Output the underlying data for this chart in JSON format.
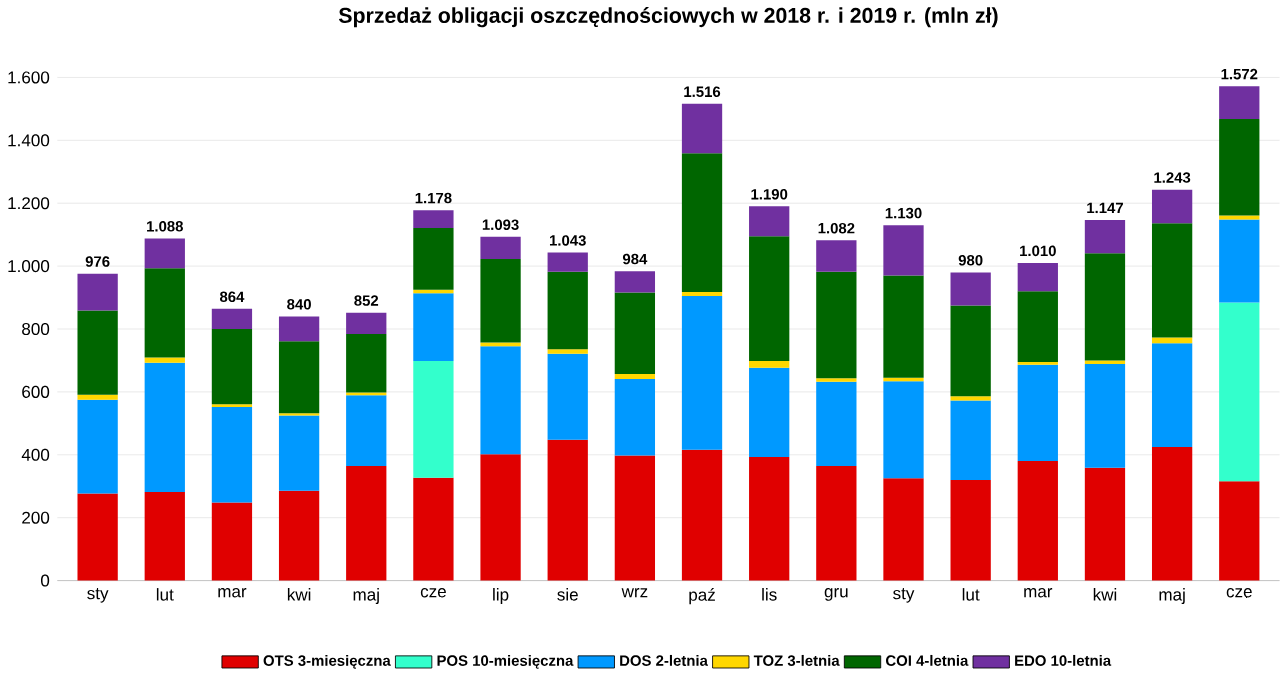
{
  "chart_data": {
    "type": "bar",
    "stacked": true,
    "title": "Sprzedaż obligacji oszczędnościowych w 2018 r. i 2019 r. (mln zł)",
    "categories": [
      "sty",
      "lut",
      "mar",
      "kwi",
      "maj",
      "cze",
      "lip",
      "sie",
      "wrz",
      "paź",
      "lis",
      "gru",
      "sty",
      "lut",
      "mar",
      "kwi",
      "maj",
      "cze"
    ],
    "series": [
      {
        "name": "OTS 3-miesięczna",
        "color": "#e00000",
        "values": [
          277,
          282,
          248,
          286,
          364,
          327,
          402,
          448,
          398,
          416,
          393,
          364,
          325,
          320,
          380,
          359,
          425,
          316
        ]
      },
      {
        "name": "POS 10-miesięczna",
        "color": "#33ffcc",
        "values": [
          null,
          null,
          null,
          null,
          null,
          371,
          null,
          null,
          null,
          null,
          null,
          null,
          null,
          null,
          null,
          null,
          null,
          568
        ]
      },
      {
        "name": "DOS 2-letnia",
        "color": "#0099ff",
        "values": [
          298,
          411,
          304,
          239,
          225,
          216,
          343,
          273,
          243,
          489,
          284,
          268,
          309,
          253,
          306,
          330,
          330,
          264
        ]
      },
      {
        "name": "TOZ 3-letnia",
        "color": "#ffd700",
        "values": [
          16,
          16,
          9,
          7,
          9,
          11,
          12,
          15,
          16,
          13,
          21,
          11,
          11,
          13,
          9,
          11,
          18,
          13
        ]
      },
      {
        "name": "COI 4-letnia",
        "color": "#006600",
        "values": [
          268,
          284,
          239,
          229,
          186,
          196,
          266,
          246,
          259,
          441,
          397,
          339,
          325,
          289,
          225,
          341,
          363,
          307
        ]
      },
      {
        "name": "EDO 10-letnia",
        "color": "#7030a0",
        "values": [
          117,
          95,
          64,
          79,
          68,
          57,
          70,
          61,
          68,
          157,
          95,
          100,
          160,
          105,
          90,
          106,
          107,
          104
        ]
      }
    ],
    "totals": [
      "976",
      "1.088",
      "864",
      "840",
      "852",
      "1.178",
      "1.093",
      "1.043",
      "984",
      "1.516",
      "1.190",
      "1.082",
      "1.130",
      "980",
      "1.010",
      "1.147",
      "1.243",
      "1.572"
    ],
    "ylim": [
      0,
      1600
    ],
    "yticks": [
      0,
      200,
      400,
      600,
      800,
      {
        "value": 1000,
        "label": "1.000"
      },
      {
        "value": 1200,
        "label": "1.200"
      },
      {
        "value": 1400,
        "label": "1.400"
      },
      {
        "value": 1600,
        "label": "1.600"
      }
    ],
    "grid": "y",
    "legend": "bottom"
  }
}
